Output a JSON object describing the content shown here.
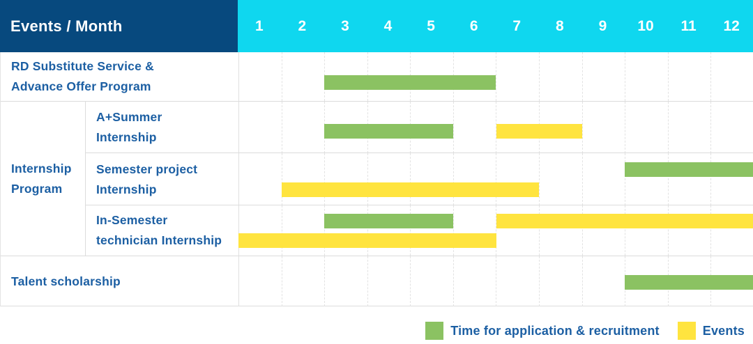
{
  "header": {
    "title": "Events / Month"
  },
  "colors": {
    "navy": "#07497E",
    "cyan": "#0FD7EF",
    "green": "#8BC262",
    "yellow": "#FFE43F",
    "label_text": "#1C5FA3",
    "grid_line": "#E0E0E0"
  },
  "chart_data": {
    "type": "gantt",
    "title": "Events / Month",
    "x_unit": "month",
    "x_range": [
      1,
      12
    ],
    "months": [
      "1",
      "2",
      "3",
      "4",
      "5",
      "6",
      "7",
      "8",
      "9",
      "10",
      "11",
      "12"
    ],
    "group": {
      "label": "Internship\nProgram",
      "member_rows": [
        1,
        2,
        3
      ]
    },
    "rows": [
      {
        "label": "RD Substitute Service &\nAdvance Offer Program",
        "bars": [
          {
            "type": "recruitment",
            "start": 3,
            "end": 6,
            "line": 0
          }
        ]
      },
      {
        "label": "A+Summer\nInternship",
        "bars": [
          {
            "type": "recruitment",
            "start": 3,
            "end": 5,
            "line": 0
          },
          {
            "type": "event",
            "start": 7,
            "end": 8,
            "line": 0
          }
        ]
      },
      {
        "label": "Semester project\nInternship",
        "bars": [
          {
            "type": "recruitment",
            "start": 10,
            "end": 12,
            "line": 0
          },
          {
            "type": "event",
            "start": 2,
            "end": 7,
            "line": 1
          }
        ]
      },
      {
        "label": "In-Semester\ntechnician Internship",
        "bars": [
          {
            "type": "recruitment",
            "start": 3,
            "end": 5,
            "line": 0
          },
          {
            "type": "event",
            "start": 7,
            "end": 12,
            "line": 0
          },
          {
            "type": "event",
            "start": 1,
            "end": 6,
            "line": 1
          }
        ]
      },
      {
        "label": "Talent scholarship",
        "bars": [
          {
            "type": "recruitment",
            "start": 10,
            "end": 12,
            "line": 0
          }
        ]
      }
    ],
    "legend": [
      {
        "type": "recruitment",
        "label": "Time for application & recruitment",
        "color": "#8BC262"
      },
      {
        "type": "event",
        "label": "Events",
        "color": "#FFE43F"
      }
    ]
  }
}
